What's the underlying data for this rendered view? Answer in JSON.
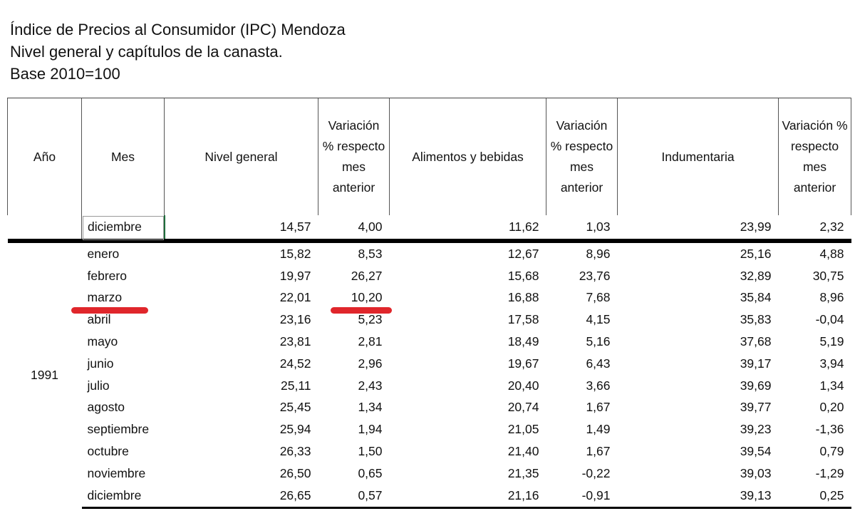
{
  "titles": {
    "line1": "Índice de Precios al Consumidor (IPC) Mendoza",
    "line2": "Nivel general y capítulos de la canasta.",
    "line3": "Base 2010=100"
  },
  "headers": [
    "Año",
    "Mes",
    "Nivel general",
    "Variación % respecto mes anterior",
    "Alimentos y bebidas",
    "Variación % respecto mes anterior",
    "Indumentaria",
    "Variación % respecto mes anterior"
  ],
  "prev_row": {
    "mes": "diciembre",
    "nivel_general": "14,57",
    "var_nivel": "4,00",
    "alimentos": "11,62",
    "var_alimentos": "1,03",
    "indumentaria": "23,99",
    "var_indumentaria": "2,32"
  },
  "year_label": "1991",
  "rows": [
    {
      "mes": "enero",
      "nivel_general": "15,82",
      "var_nivel": "8,53",
      "alimentos": "12,67",
      "var_alimentos": "8,96",
      "indumentaria": "25,16",
      "var_indumentaria": "4,88"
    },
    {
      "mes": "febrero",
      "nivel_general": "19,97",
      "var_nivel": "26,27",
      "alimentos": "15,68",
      "var_alimentos": "23,76",
      "indumentaria": "32,89",
      "var_indumentaria": "30,75"
    },
    {
      "mes": "marzo",
      "nivel_general": "22,01",
      "var_nivel": "10,20",
      "alimentos": "16,88",
      "var_alimentos": "7,68",
      "indumentaria": "35,84",
      "var_indumentaria": "8,96"
    },
    {
      "mes": "abril",
      "nivel_general": "23,16",
      "var_nivel": "5,23",
      "alimentos": "17,58",
      "var_alimentos": "4,15",
      "indumentaria": "35,83",
      "var_indumentaria": "-0,04"
    },
    {
      "mes": "mayo",
      "nivel_general": "23,81",
      "var_nivel": "2,81",
      "alimentos": "18,49",
      "var_alimentos": "5,16",
      "indumentaria": "37,68",
      "var_indumentaria": "5,19"
    },
    {
      "mes": "junio",
      "nivel_general": "24,52",
      "var_nivel": "2,96",
      "alimentos": "19,67",
      "var_alimentos": "6,43",
      "indumentaria": "39,17",
      "var_indumentaria": "3,94"
    },
    {
      "mes": "julio",
      "nivel_general": "25,11",
      "var_nivel": "2,43",
      "alimentos": "20,40",
      "var_alimentos": "3,66",
      "indumentaria": "39,69",
      "var_indumentaria": "1,34"
    },
    {
      "mes": "agosto",
      "nivel_general": "25,45",
      "var_nivel": "1,34",
      "alimentos": "20,74",
      "var_alimentos": "1,67",
      "indumentaria": "39,77",
      "var_indumentaria": "0,20"
    },
    {
      "mes": "septiembre",
      "nivel_general": "25,94",
      "var_nivel": "1,94",
      "alimentos": "21,05",
      "var_alimentos": "1,49",
      "indumentaria": "39,23",
      "var_indumentaria": "-1,36"
    },
    {
      "mes": "octubre",
      "nivel_general": "26,33",
      "var_nivel": "1,50",
      "alimentos": "21,40",
      "var_alimentos": "1,67",
      "indumentaria": "39,54",
      "var_indumentaria": "0,79"
    },
    {
      "mes": "noviembre",
      "nivel_general": "26,50",
      "var_nivel": "0,65",
      "alimentos": "21,35",
      "var_alimentos": "-0,22",
      "indumentaria": "39,03",
      "var_indumentaria": "-1,29"
    },
    {
      "mes": "diciembre",
      "nivel_general": "26,65",
      "var_nivel": "0,57",
      "alimentos": "21,16",
      "var_alimentos": "-0,91",
      "indumentaria": "39,13",
      "var_indumentaria": "0,25"
    }
  ],
  "highlight": {
    "color": "#e0262b",
    "row_mes": "marzo"
  }
}
